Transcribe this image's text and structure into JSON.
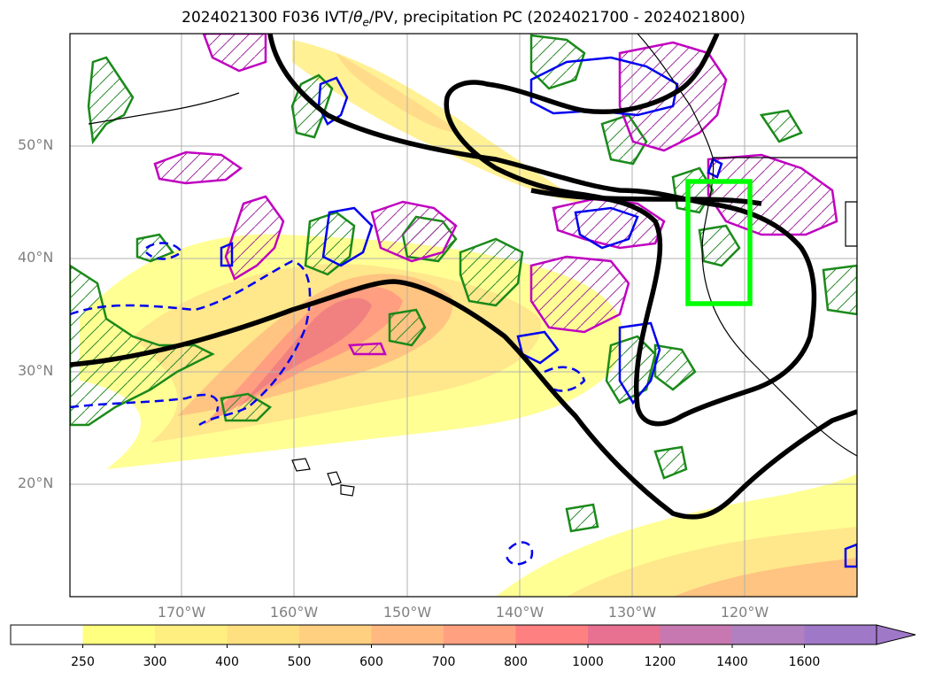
{
  "title": "2024021300 F036 IVT/θe/PV, precipitation PC (2024021700 - 2024021800)",
  "map": {
    "lat_labels": [
      "50°N",
      "40°N",
      "30°N",
      "20°N"
    ],
    "lon_labels": [
      "170°W",
      "160°W",
      "150°W",
      "140°W",
      "130°W",
      "120°W"
    ],
    "region_box": {
      "lon": [
        -125,
        -120
      ],
      "lat": [
        36,
        47
      ],
      "color": "#00ff00"
    },
    "layers": [
      {
        "name": "ivt-shading",
        "description_icon": "ivt-fill"
      },
      {
        "name": "theta-e-contour",
        "color": "#000000"
      },
      {
        "name": "pv-positive-contour",
        "color": "#0000ff"
      },
      {
        "name": "pv-negative-contour",
        "color": "#0000ff",
        "style": "dashed"
      },
      {
        "name": "precip-pc-positive",
        "color": "#008000",
        "hatch": true
      },
      {
        "name": "precip-pc-negative",
        "color": "#c000c0",
        "hatch": true
      }
    ]
  },
  "colorbar": {
    "ticks": [
      "250",
      "300",
      "400",
      "500",
      "600",
      "700",
      "800",
      "1000",
      "1200",
      "1400",
      "1600"
    ],
    "colors": [
      "#ffffff",
      "#ffff80",
      "#ffef80",
      "#ffe080",
      "#ffd080",
      "#ffb880",
      "#ffa080",
      "#ff8080",
      "#e87090",
      "#c878b0",
      "#b080c0",
      "#a078c8"
    ],
    "extend": "max"
  }
}
